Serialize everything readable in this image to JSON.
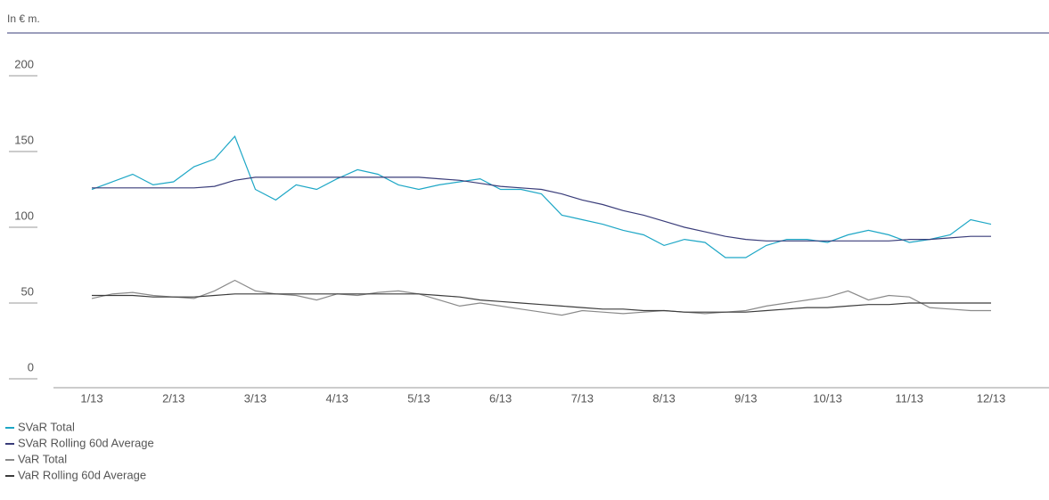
{
  "chart_data": {
    "type": "line",
    "subtitle": "In € m.",
    "categories": [
      "1/13",
      null,
      null,
      null,
      "2/13",
      null,
      null,
      null,
      "3/13",
      null,
      null,
      null,
      "4/13",
      null,
      null,
      null,
      "5/13",
      null,
      null,
      null,
      "6/13",
      null,
      null,
      null,
      "7/13",
      null,
      null,
      null,
      "8/13",
      null,
      null,
      null,
      "9/13",
      null,
      null,
      null,
      "10/13",
      null,
      null,
      null,
      "11/13",
      null,
      null,
      null,
      "12/13"
    ],
    "series": [
      {
        "name": "SVaR Total",
        "color": "#1ea7c6",
        "values": [
          125,
          130,
          135,
          128,
          130,
          140,
          145,
          160,
          125,
          118,
          128,
          125,
          132,
          138,
          135,
          128,
          125,
          128,
          130,
          132,
          125,
          125,
          122,
          108,
          105,
          102,
          98,
          95,
          88,
          92,
          90,
          80,
          80,
          88,
          92,
          92,
          90,
          95,
          98,
          95,
          90,
          92,
          95,
          105,
          102
        ]
      },
      {
        "name": "SVaR Rolling 60d Average",
        "color": "#3a3d7a",
        "values": [
          126,
          126,
          126,
          126,
          126,
          126,
          127,
          131,
          133,
          133,
          133,
          133,
          133,
          133,
          133,
          133,
          133,
          132,
          131,
          129,
          127,
          126,
          125,
          122,
          118,
          115,
          111,
          108,
          104,
          100,
          97,
          94,
          92,
          91,
          91,
          91,
          91,
          91,
          91,
          91,
          92,
          92,
          93,
          94,
          94
        ]
      },
      {
        "name": "VaR Total",
        "color": "#8a8a8a",
        "values": [
          53,
          56,
          57,
          55,
          54,
          53,
          58,
          65,
          58,
          56,
          55,
          52,
          56,
          55,
          57,
          58,
          56,
          52,
          48,
          50,
          48,
          46,
          44,
          42,
          45,
          44,
          43,
          44,
          45,
          44,
          43,
          44,
          45,
          48,
          50,
          52,
          54,
          58,
          52,
          55,
          54,
          47,
          46,
          45,
          45
        ]
      },
      {
        "name": "VaR Rolling 60d Average",
        "color": "#3c3c3c",
        "values": [
          55,
          55,
          55,
          54,
          54,
          54,
          55,
          56,
          56,
          56,
          56,
          56,
          56,
          56,
          56,
          56,
          56,
          55,
          54,
          52,
          51,
          50,
          49,
          48,
          47,
          46,
          46,
          45,
          45,
          44,
          44,
          44,
          44,
          45,
          46,
          47,
          47,
          48,
          49,
          49,
          50,
          50,
          50,
          50,
          50
        ]
      }
    ],
    "ylim": [
      0,
      200
    ],
    "yticks": [
      0,
      50,
      100,
      150,
      200
    ]
  }
}
